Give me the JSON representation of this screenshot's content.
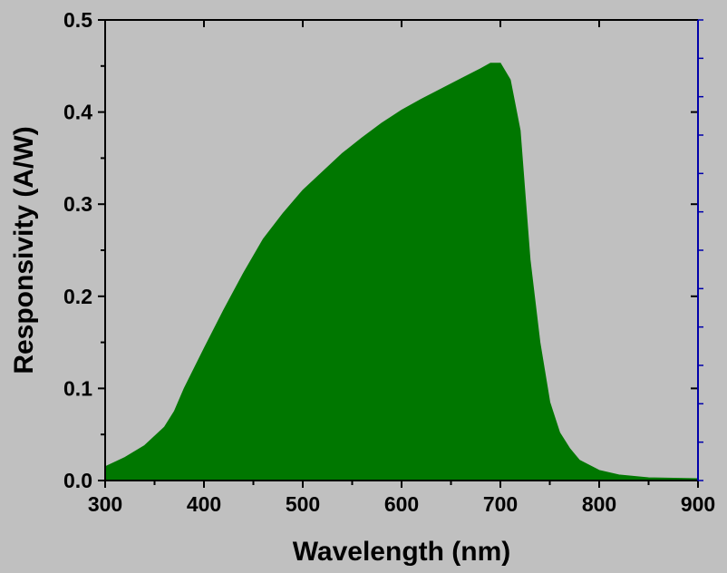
{
  "chart_data": {
    "type": "area",
    "xlabel": "Wavelength (nm)",
    "ylabel": "Responsivity (A/W)",
    "xlim": [
      300,
      900
    ],
    "ylim": [
      0,
      0.5
    ],
    "xticks": [
      300,
      400,
      500,
      600,
      700,
      800,
      900
    ],
    "yticks": [
      0.0,
      0.1,
      0.2,
      0.3,
      0.4,
      0.5
    ],
    "x": [
      300,
      320,
      340,
      360,
      370,
      380,
      400,
      420,
      440,
      460,
      480,
      500,
      520,
      540,
      560,
      580,
      600,
      620,
      640,
      660,
      680,
      690,
      700,
      710,
      720,
      730,
      740,
      750,
      760,
      770,
      780,
      800,
      820,
      850,
      900
    ],
    "series": [
      {
        "values": [
          0.015,
          0.025,
          0.038,
          0.058,
          0.075,
          0.1,
          0.143,
          0.185,
          0.225,
          0.262,
          0.29,
          0.315,
          0.335,
          0.355,
          0.372,
          0.388,
          0.402,
          0.414,
          0.425,
          0.436,
          0.447,
          0.453,
          0.453,
          0.435,
          0.38,
          0.24,
          0.15,
          0.085,
          0.052,
          0.035,
          0.022,
          0.011,
          0.006,
          0.003,
          0.002
        ]
      }
    ],
    "grid": false,
    "legend": "none",
    "colors": {
      "fill": "#007700",
      "background": "#c0c0c0",
      "axis": "#000000",
      "right_axis": "#0000aa"
    }
  }
}
